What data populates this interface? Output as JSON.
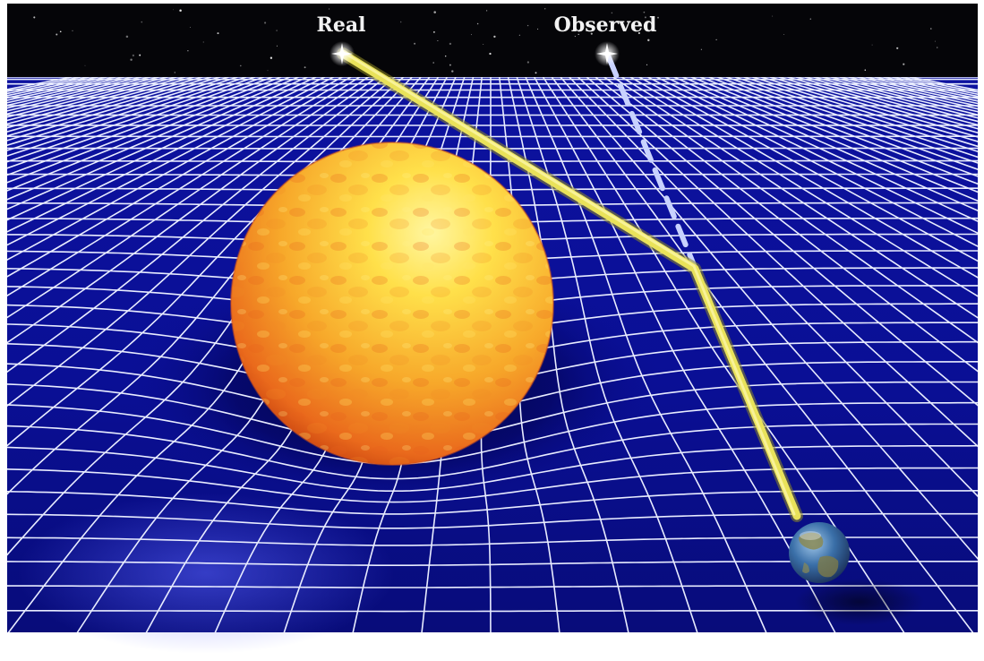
{
  "labels": {
    "real": "Real",
    "observed": "Observed"
  },
  "colors": {
    "space": "#050508",
    "grid_fabric": "#0b0f9a",
    "grid_line": "#e8ecff",
    "light_beam": "#e9e25a",
    "observed_path": "#c8d2ff",
    "sun_core": "#ffe24a",
    "sun_edge": "#e0561a",
    "earth_ocean": "#3a6fa8",
    "earth_land": "#8a8a55"
  },
  "icons": {
    "real_star": "star-glint",
    "observed_star": "star-glint",
    "sun": "sun-sphere",
    "earth": "earth-globe"
  }
}
